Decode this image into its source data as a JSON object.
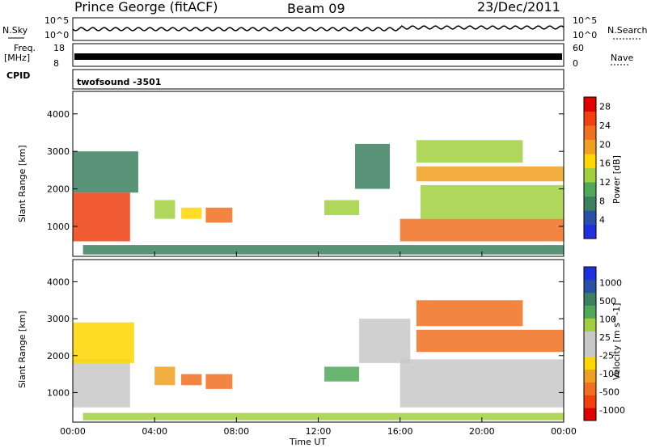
{
  "header": {
    "title": "Prince George (fitACF)",
    "beam": "Beam 09",
    "date": "23/Dec/2011"
  },
  "nsky": {
    "label": "N.Sky",
    "ticks": [
      "10^5",
      "10^0"
    ]
  },
  "nsearch": {
    "label": "N.Search",
    "ticks": [
      "10^5",
      "10^0"
    ]
  },
  "freq": {
    "label_line1": "Freq.",
    "label_line2": "[MHz]",
    "ticks": [
      "18",
      "8"
    ]
  },
  "nave": {
    "label": "Nave",
    "ticks": [
      "60",
      "0"
    ]
  },
  "cpid": {
    "label": "CPID",
    "value": "twofsound -3501"
  },
  "colors": {
    "power_scale": [
      "#1f30e0",
      "#2850a8",
      "#3c8060",
      "#50a858",
      "#a0d040",
      "#ffd700",
      "#f0a020",
      "#f07020",
      "#f04010",
      "#e00000"
    ],
    "velocity_scale": [
      "#e00000",
      "#f04010",
      "#f07020",
      "#f0a020",
      "#ffd700",
      "#c8c8c8",
      "#c8c8c8",
      "#a0d040",
      "#50a858",
      "#3c8060",
      "#2850a8",
      "#1f30e0"
    ]
  },
  "chart_data": [
    {
      "type": "heatmap",
      "name": "power",
      "ylabel": "Slant Range [km]",
      "xlabel": "",
      "x_ticks": [
        "00:00",
        "04:00",
        "08:00",
        "12:00",
        "16:00",
        "20:00",
        "00:00"
      ],
      "y_ticks": [
        "1000",
        "2000",
        "3000",
        "4000"
      ],
      "ylim": [
        200,
        4600
      ],
      "xlim_hours": [
        0,
        24
      ],
      "colorbar": {
        "label": "Power [dB]",
        "ticks": [
          "4",
          "8",
          "12",
          "16",
          "20",
          "24",
          "28"
        ],
        "range": [
          0,
          30
        ]
      },
      "regions": [
        {
          "t0": 0.0,
          "t1": 2.8,
          "r0": 600,
          "r1": 1900,
          "level": 26
        },
        {
          "t0": 0.0,
          "t1": 3.2,
          "r0": 1900,
          "r1": 3000,
          "level": 8
        },
        {
          "t0": 4.0,
          "t1": 5.0,
          "r0": 1200,
          "r1": 1700,
          "level": 14
        },
        {
          "t0": 5.3,
          "t1": 6.3,
          "r0": 1200,
          "r1": 1500,
          "level": 18
        },
        {
          "t0": 6.5,
          "t1": 7.8,
          "r0": 1100,
          "r1": 1500,
          "level": 22
        },
        {
          "t0": 12.3,
          "t1": 14.0,
          "r0": 1300,
          "r1": 1700,
          "level": 14
        },
        {
          "t0": 13.8,
          "t1": 15.5,
          "r0": 2000,
          "r1": 3200,
          "level": 8
        },
        {
          "t0": 16.0,
          "t1": 24.0,
          "r0": 600,
          "r1": 1200,
          "level": 24
        },
        {
          "t0": 17.0,
          "t1": 24.0,
          "r0": 1200,
          "r1": 2100,
          "level": 14
        },
        {
          "t0": 16.8,
          "t1": 24.0,
          "r0": 2200,
          "r1": 2600,
          "level": 20
        },
        {
          "t0": 16.8,
          "t1": 22.0,
          "r0": 2700,
          "r1": 3300,
          "level": 12
        },
        {
          "t0": 0.5,
          "t1": 24.0,
          "r0": 250,
          "r1": 500,
          "level": 6
        }
      ]
    },
    {
      "type": "heatmap",
      "name": "velocity",
      "ylabel": "Slant Range [km]",
      "xlabel": "Time UT",
      "x_ticks": [
        "00:00",
        "04:00",
        "08:00",
        "12:00",
        "16:00",
        "20:00",
        "00:00"
      ],
      "y_ticks": [
        "1000",
        "2000",
        "3000",
        "4000"
      ],
      "ylim": [
        200,
        4600
      ],
      "xlim_hours": [
        0,
        24
      ],
      "colorbar": {
        "label": "Velocity [m s^-1]",
        "ticks": [
          "1000",
          "500",
          "100",
          "25",
          "-25",
          "-100",
          "-500",
          "-1000"
        ]
      },
      "regions": [
        {
          "t0": 0.0,
          "t1": 2.8,
          "r0": 600,
          "r1": 1900,
          "level": 0
        },
        {
          "t0": 0.0,
          "t1": 3.0,
          "r0": 1800,
          "r1": 2900,
          "level": -80
        },
        {
          "t0": 4.0,
          "t1": 5.0,
          "r0": 1200,
          "r1": 1700,
          "level": -120
        },
        {
          "t0": 5.3,
          "t1": 6.3,
          "r0": 1200,
          "r1": 1500,
          "level": -200
        },
        {
          "t0": 6.5,
          "t1": 7.8,
          "r0": 1100,
          "r1": 1500,
          "level": -300
        },
        {
          "t0": 12.3,
          "t1": 14.0,
          "r0": 1300,
          "r1": 1700,
          "level": 200
        },
        {
          "t0": 14.0,
          "t1": 16.5,
          "r0": 1800,
          "r1": 3000,
          "level": 0
        },
        {
          "t0": 16.0,
          "t1": 24.0,
          "r0": 600,
          "r1": 1900,
          "level": 0
        },
        {
          "t0": 16.8,
          "t1": 24.0,
          "r0": 2100,
          "r1": 2700,
          "level": -200
        },
        {
          "t0": 16.8,
          "t1": 22.0,
          "r0": 2800,
          "r1": 3500,
          "level": -300
        },
        {
          "t0": 0.5,
          "t1": 24.0,
          "r0": 250,
          "r1": 450,
          "level": 60
        }
      ]
    }
  ]
}
